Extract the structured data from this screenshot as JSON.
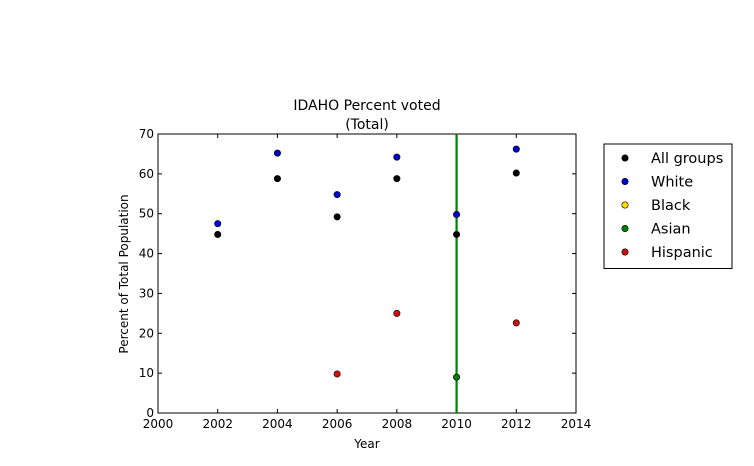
{
  "chart_data": {
    "type": "scatter",
    "title": "IDAHO Percent voted",
    "subtitle": "(Total)",
    "xlabel": "Year",
    "ylabel": "Percent of Total Population",
    "xlim": [
      2000,
      2014
    ],
    "ylim": [
      0,
      70
    ],
    "xticks": [
      "2000",
      "2002",
      "2004",
      "2006",
      "2008",
      "2010",
      "2012",
      "2014"
    ],
    "yticks": [
      "0",
      "10",
      "20",
      "30",
      "40",
      "50",
      "60",
      "70"
    ],
    "grid": false,
    "legend_position": "outside-right",
    "vertical_line": {
      "x": 2010,
      "color": "#008000"
    },
    "series": [
      {
        "name": "All groups",
        "color": "#000000",
        "x": [
          2002,
          2004,
          2006,
          2008,
          2010,
          2012
        ],
        "y": [
          44.8,
          58.8,
          49.2,
          58.8,
          44.8,
          60.2
        ]
      },
      {
        "name": "White",
        "color": "#0000cc",
        "x": [
          2002,
          2004,
          2006,
          2008,
          2010,
          2012
        ],
        "y": [
          47.5,
          65.2,
          54.8,
          64.2,
          49.8,
          66.2
        ]
      },
      {
        "name": "Black",
        "color": "#ffdd00",
        "x": [],
        "y": []
      },
      {
        "name": "Asian",
        "color": "#008000",
        "x": [
          2010
        ],
        "y": [
          9.0
        ]
      },
      {
        "name": "Hispanic",
        "color": "#cc1111",
        "x": [
          2006,
          2008,
          2012
        ],
        "y": [
          9.8,
          25.0,
          22.6
        ]
      }
    ]
  }
}
